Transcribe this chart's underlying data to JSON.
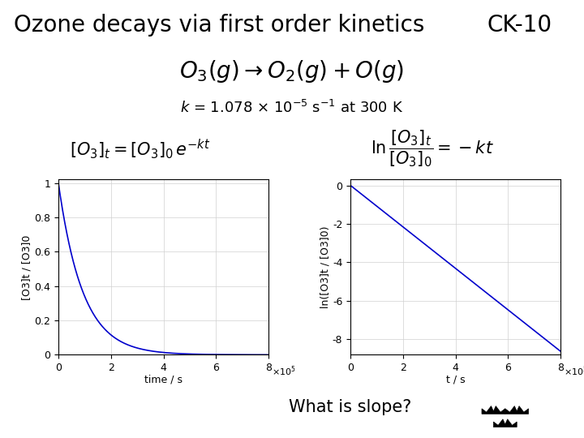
{
  "title": "Ozone decays via first order kinetics",
  "title_tag": "CK-10",
  "title_bg": "#f5f500",
  "tag_bg": "#a8c8d8",
  "k": 1.078e-05,
  "t_max": 800000.0,
  "white_bg": "#ffffff",
  "plot_line_color": "#0000cc",
  "xlabel_left": "time / s",
  "xlabel_right": "t / s",
  "ylabel_left": "[O3]t / [O3]0",
  "ylabel_right": "ln([O3]t / [O3]0)",
  "what_is_slope": "What is slope?",
  "grid_color": "#d0d0d0",
  "font_size_title": 20,
  "font_size_axis_label": 9,
  "font_size_tick": 9,
  "font_size_bottom": 15
}
